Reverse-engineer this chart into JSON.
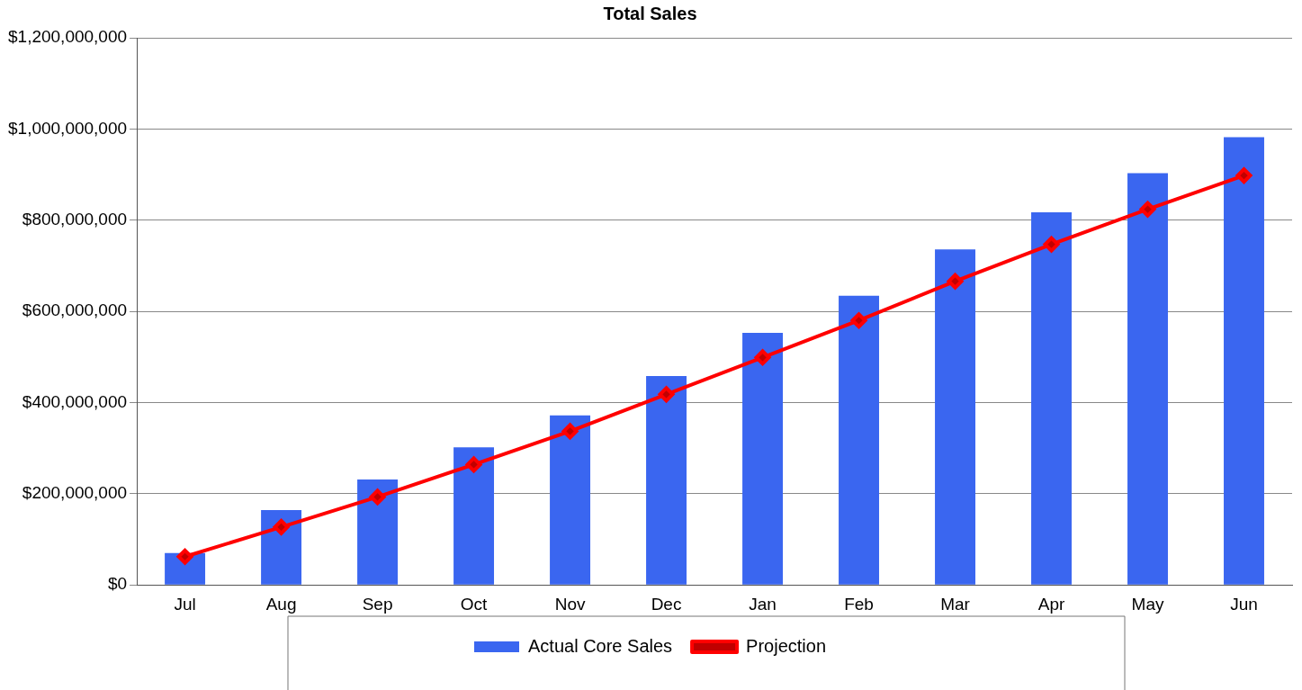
{
  "chart_data": {
    "type": "bar",
    "title": "Total Sales",
    "categories": [
      "Jul",
      "Aug",
      "Sep",
      "Oct",
      "Nov",
      "Dec",
      "Jan",
      "Feb",
      "Mar",
      "Apr",
      "May",
      "Jun"
    ],
    "series": [
      {
        "name": "Actual Core Sales",
        "color": "#3a66f0",
        "values": [
          70000000,
          164000000,
          231000000,
          302000000,
          372000000,
          458000000,
          553000000,
          634000000,
          736000000,
          817000000,
          903000000,
          982000000
        ]
      },
      {
        "name": "Projection",
        "type": "line",
        "color": "#ff0000",
        "values": [
          62000000,
          127000000,
          193000000,
          264000000,
          337000000,
          418000000,
          499000000,
          580000000,
          666000000,
          747000000,
          824000000,
          898000000
        ]
      }
    ],
    "ylim": [
      0,
      1200000000
    ],
    "yticks": [
      {
        "value": 0,
        "label": "$0"
      },
      {
        "value": 200000000,
        "label": "$200,000,000"
      },
      {
        "value": 400000000,
        "label": "$400,000,000"
      },
      {
        "value": 600000000,
        "label": "$600,000,000"
      },
      {
        "value": 800000000,
        "label": "$800,000,000"
      },
      {
        "value": 1000000000,
        "label": "$1,000,000,000"
      },
      {
        "value": 1200000000,
        "label": "$1,200,000,000"
      }
    ],
    "grid": "y",
    "legend": "bottom",
    "marker": "diamond",
    "line_style": "solid"
  }
}
